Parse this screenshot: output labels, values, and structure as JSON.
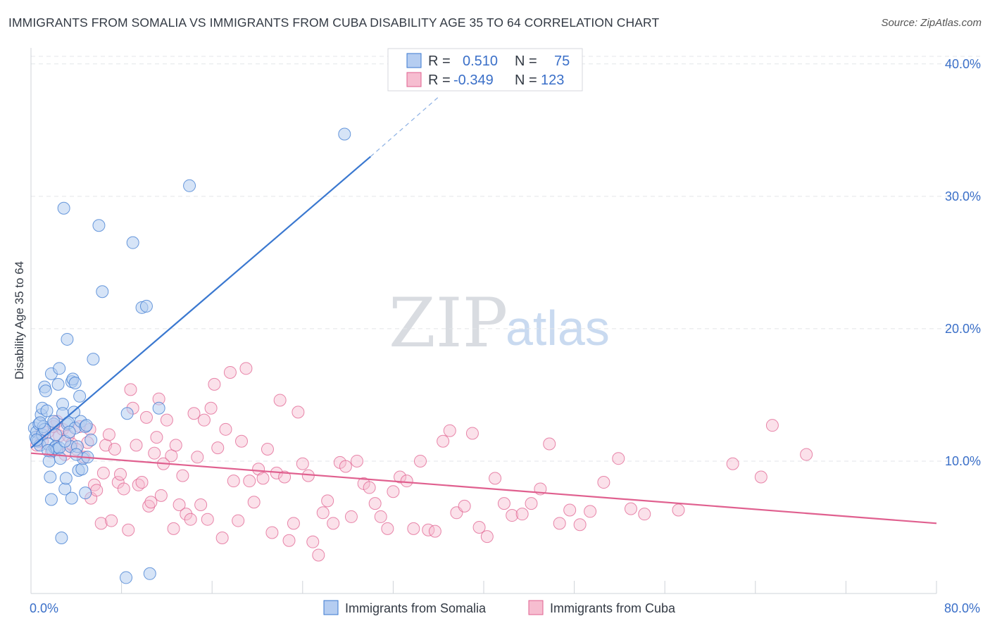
{
  "title": "IMMIGRANTS FROM SOMALIA VS IMMIGRANTS FROM CUBA DISABILITY AGE 35 TO 64 CORRELATION CHART",
  "source": "Source: ZipAtlas.com",
  "watermark": {
    "part1": "ZIP",
    "part2": "atlas"
  },
  "colors": {
    "somalia": "#3a78d0",
    "cuba": "#e0608f",
    "somalia_fill": "#b5cdf1",
    "cuba_fill": "#f6bdd0",
    "axis_text": "#3a6fc8"
  },
  "legend": {
    "rows": [
      {
        "r_label": "R =",
        "r_value": "0.510",
        "n_label": "N =",
        "n_value": "75"
      },
      {
        "r_label": "R =",
        "r_value": "-0.349",
        "n_label": "N =",
        "n_value": "123"
      }
    ]
  },
  "chart_data": {
    "type": "scatter",
    "title": "IMMIGRANTS FROM SOMALIA VS IMMIGRANTS FROM CUBA DISABILITY AGE 35 TO 64 CORRELATION CHART",
    "xlabel": "",
    "ylabel": "Disability Age 35 to 64",
    "xlim": [
      0,
      80
    ],
    "ylim": [
      0,
      41
    ],
    "x_tick_labels": [
      "0.0%",
      "80.0%"
    ],
    "y_ticks": [
      10,
      20,
      30,
      40
    ],
    "y_tick_labels": [
      "10.0%",
      "20.0%",
      "30.0%",
      "40.0%"
    ],
    "grid": true,
    "legend_position": "top-center",
    "series": [
      {
        "name": "Immigrants from Somalia",
        "r": 0.51,
        "n": 75,
        "trend": {
          "x0": 0,
          "y0": 11.0,
          "x1": 30,
          "y1": 33.0,
          "dash_x1": 36,
          "dash_y1": 37.5
        },
        "points": [
          [
            0.3,
            12.5
          ],
          [
            0.4,
            11.8
          ],
          [
            0.5,
            12.2
          ],
          [
            0.6,
            11.5
          ],
          [
            0.7,
            12.8
          ],
          [
            0.8,
            11.2
          ],
          [
            0.9,
            13.5
          ],
          [
            1.0,
            12.0
          ],
          [
            1.0,
            14.0
          ],
          [
            1.1,
            12.6
          ],
          [
            1.2,
            15.6
          ],
          [
            1.3,
            15.3
          ],
          [
            1.4,
            13.8
          ],
          [
            1.5,
            11.3
          ],
          [
            1.6,
            10.0
          ],
          [
            1.7,
            8.8
          ],
          [
            1.8,
            16.6
          ],
          [
            1.8,
            7.1
          ],
          [
            1.9,
            10.8
          ],
          [
            2.0,
            12.8
          ],
          [
            2.1,
            11.0
          ],
          [
            2.2,
            11.1
          ],
          [
            2.3,
            10.9
          ],
          [
            2.4,
            15.8
          ],
          [
            2.5,
            17.0
          ],
          [
            2.5,
            11.0
          ],
          [
            2.6,
            10.2
          ],
          [
            2.7,
            4.2
          ],
          [
            2.8,
            14.3
          ],
          [
            2.8,
            13.6
          ],
          [
            2.9,
            29.1
          ],
          [
            3.0,
            7.9
          ],
          [
            3.1,
            8.7
          ],
          [
            3.2,
            12.8
          ],
          [
            3.2,
            19.2
          ],
          [
            3.3,
            12.9
          ],
          [
            3.5,
            11.1
          ],
          [
            3.6,
            16.0
          ],
          [
            3.6,
            7.2
          ],
          [
            3.7,
            16.2
          ],
          [
            3.8,
            13.7
          ],
          [
            3.9,
            15.9
          ],
          [
            3.9,
            12.5
          ],
          [
            4.1,
            11.1
          ],
          [
            4.2,
            9.3
          ],
          [
            4.3,
            14.9
          ],
          [
            4.4,
            13.0
          ],
          [
            4.5,
            9.4
          ],
          [
            4.6,
            10.2
          ],
          [
            4.8,
            12.6
          ],
          [
            4.8,
            7.6
          ],
          [
            4.9,
            12.7
          ],
          [
            5.0,
            10.3
          ],
          [
            5.3,
            11.6
          ],
          [
            5.5,
            17.7
          ],
          [
            6.0,
            27.8
          ],
          [
            6.3,
            22.8
          ],
          [
            8.4,
            1.2
          ],
          [
            8.5,
            13.6
          ],
          [
            9.0,
            26.5
          ],
          [
            9.8,
            21.6
          ],
          [
            10.2,
            21.7
          ],
          [
            10.5,
            1.5
          ],
          [
            11.3,
            14.0
          ],
          [
            14.0,
            30.8
          ],
          [
            27.7,
            34.7
          ],
          [
            0.5,
            11.6
          ],
          [
            1.2,
            12.4
          ],
          [
            2.0,
            13.0
          ],
          [
            3.0,
            11.5
          ],
          [
            4.0,
            10.5
          ],
          [
            1.5,
            10.8
          ],
          [
            0.8,
            12.9
          ],
          [
            2.2,
            12.0
          ],
          [
            3.4,
            12.2
          ]
        ]
      },
      {
        "name": "Immigrants from Cuba",
        "r": -0.349,
        "n": 123,
        "trend": {
          "x0": 0,
          "y0": 10.6,
          "x1": 80,
          "y1": 5.3
        },
        "points": [
          [
            0.5,
            11.2
          ],
          [
            0.8,
            12.0
          ],
          [
            1.0,
            11.5
          ],
          [
            1.5,
            12.2
          ],
          [
            1.8,
            10.7
          ],
          [
            2.0,
            12.6
          ],
          [
            2.3,
            13.0
          ],
          [
            2.5,
            11.9
          ],
          [
            2.8,
            12.4
          ],
          [
            3.0,
            10.5
          ],
          [
            3.3,
            11.9
          ],
          [
            3.6,
            11.3
          ],
          [
            4.0,
            10.9
          ],
          [
            4.3,
            12.6
          ],
          [
            4.7,
            10.3
          ],
          [
            5.0,
            11.4
          ],
          [
            5.2,
            12.4
          ],
          [
            5.3,
            7.2
          ],
          [
            5.6,
            8.2
          ],
          [
            5.8,
            7.8
          ],
          [
            6.2,
            5.3
          ],
          [
            6.4,
            9.1
          ],
          [
            6.6,
            11.2
          ],
          [
            6.9,
            12.0
          ],
          [
            7.1,
            5.5
          ],
          [
            7.4,
            10.9
          ],
          [
            7.7,
            8.4
          ],
          [
            7.9,
            9.0
          ],
          [
            8.2,
            7.9
          ],
          [
            8.6,
            4.8
          ],
          [
            8.8,
            15.4
          ],
          [
            9.0,
            14.0
          ],
          [
            9.3,
            11.2
          ],
          [
            9.5,
            8.2
          ],
          [
            9.8,
            8.4
          ],
          [
            10.2,
            13.3
          ],
          [
            10.4,
            6.6
          ],
          [
            10.6,
            6.9
          ],
          [
            10.9,
            10.6
          ],
          [
            11.1,
            11.8
          ],
          [
            11.3,
            14.7
          ],
          [
            11.5,
            7.4
          ],
          [
            11.7,
            9.8
          ],
          [
            12.0,
            13.1
          ],
          [
            12.4,
            10.4
          ],
          [
            12.6,
            4.9
          ],
          [
            12.8,
            11.2
          ],
          [
            13.1,
            6.7
          ],
          [
            13.4,
            8.9
          ],
          [
            13.7,
            6.0
          ],
          [
            14.1,
            5.6
          ],
          [
            14.4,
            13.6
          ],
          [
            14.7,
            10.3
          ],
          [
            15.0,
            6.7
          ],
          [
            15.3,
            13.1
          ],
          [
            15.6,
            5.6
          ],
          [
            15.9,
            14.0
          ],
          [
            16.2,
            15.8
          ],
          [
            16.5,
            11.0
          ],
          [
            16.9,
            4.2
          ],
          [
            17.2,
            12.4
          ],
          [
            17.6,
            16.7
          ],
          [
            17.9,
            8.5
          ],
          [
            18.3,
            5.5
          ],
          [
            18.6,
            11.5
          ],
          [
            19.0,
            17.0
          ],
          [
            19.3,
            8.5
          ],
          [
            19.7,
            6.9
          ],
          [
            20.1,
            9.4
          ],
          [
            20.5,
            8.7
          ],
          [
            20.9,
            10.9
          ],
          [
            21.3,
            4.6
          ],
          [
            21.7,
            9.1
          ],
          [
            22.0,
            14.6
          ],
          [
            22.4,
            8.8
          ],
          [
            22.8,
            4.0
          ],
          [
            23.2,
            5.3
          ],
          [
            23.6,
            13.7
          ],
          [
            24.0,
            9.8
          ],
          [
            24.5,
            8.9
          ],
          [
            24.9,
            3.9
          ],
          [
            25.4,
            2.9
          ],
          [
            25.8,
            6.1
          ],
          [
            26.2,
            7.0
          ],
          [
            26.7,
            5.3
          ],
          [
            27.3,
            9.9
          ],
          [
            27.8,
            9.6
          ],
          [
            28.3,
            5.8
          ],
          [
            28.8,
            10.0
          ],
          [
            29.4,
            8.3
          ],
          [
            29.9,
            8.0
          ],
          [
            30.4,
            6.8
          ],
          [
            30.9,
            5.8
          ],
          [
            31.5,
            4.9
          ],
          [
            32.0,
            7.7
          ],
          [
            32.6,
            8.8
          ],
          [
            33.2,
            8.5
          ],
          [
            33.8,
            4.9
          ],
          [
            34.4,
            10.0
          ],
          [
            35.1,
            4.8
          ],
          [
            35.7,
            4.7
          ],
          [
            36.4,
            11.5
          ],
          [
            37.0,
            12.3
          ],
          [
            37.6,
            6.1
          ],
          [
            38.3,
            6.6
          ],
          [
            39.0,
            12.1
          ],
          [
            39.6,
            5.0
          ],
          [
            40.3,
            4.3
          ],
          [
            41.0,
            8.7
          ],
          [
            41.8,
            6.8
          ],
          [
            42.5,
            5.9
          ],
          [
            43.4,
            6.0
          ],
          [
            44.2,
            6.8
          ],
          [
            45.0,
            7.9
          ],
          [
            45.8,
            11.3
          ],
          [
            46.7,
            5.3
          ],
          [
            47.6,
            6.3
          ],
          [
            48.5,
            5.2
          ],
          [
            49.4,
            6.2
          ],
          [
            50.6,
            8.4
          ],
          [
            51.9,
            10.2
          ],
          [
            53.0,
            6.4
          ],
          [
            54.2,
            6.0
          ],
          [
            57.2,
            6.3
          ],
          [
            62.0,
            9.8
          ],
          [
            64.5,
            8.8
          ],
          [
            65.5,
            12.7
          ],
          [
            68.5,
            10.5
          ]
        ]
      }
    ]
  }
}
